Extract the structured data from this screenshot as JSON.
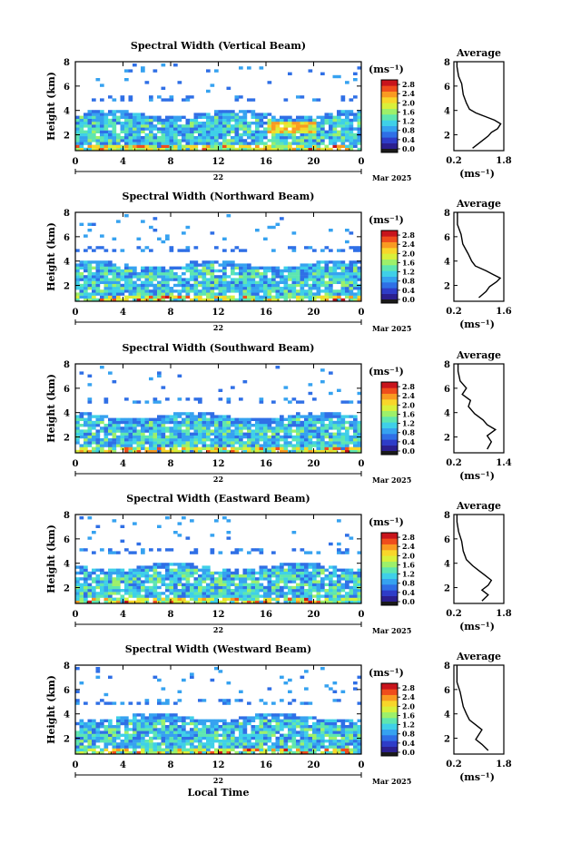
{
  "colorbar": {
    "unit": "(ms⁻¹)",
    "colors": [
      "#1a1a1a",
      "#2b1f8f",
      "#2e3cc8",
      "#2f6fe6",
      "#36a2f0",
      "#3fd0e8",
      "#5ee6b0",
      "#9df06a",
      "#d9f03a",
      "#f8d62a",
      "#f99a22",
      "#ef4d1c",
      "#c8141c"
    ]
  },
  "chart_data": [
    {
      "type": "heatmap",
      "title": "Spectral Width (Vertical Beam)",
      "ylabel": "Height (km)",
      "xlim": [
        0,
        24
      ],
      "ylim": [
        0.7,
        8
      ],
      "xticks": [
        "0",
        "4",
        "8",
        "12",
        "16",
        "20",
        "0"
      ],
      "yticks": [
        "2",
        "4",
        "6",
        "8"
      ],
      "date_day": "22",
      "date_label": "Mar 2025",
      "cbar_ticks": [
        "0.0",
        "0.4",
        "0.8",
        "1.2",
        "1.6",
        "2.0",
        "2.4",
        "2.8"
      ],
      "cbar_range": [
        0.0,
        3.0
      ],
      "avg_title": "Average",
      "avg_xlabel": "(ms⁻¹)",
      "avg_xticks": [
        "0.2",
        "1.8"
      ],
      "avg_xlim": [
        0.2,
        1.8
      ],
      "avg_yticks": [
        "2",
        "4",
        "6",
        "8"
      ],
      "avg_profile": [
        [
          0.8,
          0.9
        ],
        [
          1.0,
          1.3
        ],
        [
          1.2,
          1.7
        ],
        [
          1.3,
          1.9
        ],
        [
          1.4,
          2.2
        ],
        [
          1.6,
          2.5
        ],
        [
          1.7,
          2.9
        ],
        [
          1.5,
          3.2
        ],
        [
          1.2,
          3.5
        ],
        [
          0.9,
          3.8
        ],
        [
          0.7,
          4.1
        ],
        [
          0.6,
          4.6
        ],
        [
          0.5,
          5.3
        ],
        [
          0.45,
          6.2
        ],
        [
          0.35,
          6.8
        ],
        [
          0.3,
          7.6
        ],
        [
          0.3,
          8.0
        ]
      ]
    },
    {
      "type": "heatmap",
      "title": "Spectral Width (Northward Beam)",
      "ylabel": "Height (km)",
      "xlim": [
        0,
        24
      ],
      "ylim": [
        0.7,
        8
      ],
      "xticks": [
        "0",
        "4",
        "8",
        "12",
        "16",
        "20",
        "0"
      ],
      "yticks": [
        "2",
        "4",
        "6",
        "8"
      ],
      "date_day": "22",
      "date_label": "Mar 2025",
      "cbar_ticks": [
        "0.0",
        "0.4",
        "0.8",
        "1.2",
        "1.6",
        "2.0",
        "2.4",
        "2.8"
      ],
      "cbar_range": [
        0.0,
        3.0
      ],
      "avg_title": "Average",
      "avg_xlabel": "(ms⁻¹)",
      "avg_xticks": [
        "0.2",
        "1.6"
      ],
      "avg_xlim": [
        0.2,
        1.6
      ],
      "avg_yticks": [
        "2",
        "4",
        "6",
        "8"
      ],
      "avg_profile": [
        [
          0.9,
          1.0
        ],
        [
          1.1,
          1.5
        ],
        [
          1.2,
          1.9
        ],
        [
          1.4,
          2.3
        ],
        [
          1.5,
          2.6
        ],
        [
          1.3,
          2.9
        ],
        [
          1.1,
          3.2
        ],
        [
          0.8,
          3.6
        ],
        [
          0.7,
          4.0
        ],
        [
          0.6,
          4.6
        ],
        [
          0.45,
          5.4
        ],
        [
          0.4,
          6.2
        ],
        [
          0.3,
          7.0
        ],
        [
          0.3,
          8.0
        ]
      ]
    },
    {
      "type": "heatmap",
      "title": "Spectral Width (Southward Beam)",
      "ylabel": "Height (km)",
      "xlim": [
        0,
        24
      ],
      "ylim": [
        0.7,
        8
      ],
      "xticks": [
        "0",
        "4",
        "8",
        "12",
        "16",
        "20",
        "0"
      ],
      "yticks": [
        "2",
        "4",
        "6",
        "8"
      ],
      "date_day": "22",
      "date_label": "Mar 2025",
      "cbar_ticks": [
        "0.0",
        "0.4",
        "0.8",
        "1.2",
        "1.6",
        "2.0",
        "2.4",
        "2.8"
      ],
      "cbar_range": [
        0.0,
        3.0
      ],
      "avg_title": "Average",
      "avg_xlabel": "(ms⁻¹)",
      "avg_xticks": [
        "0.2",
        "1.4"
      ],
      "avg_xlim": [
        0.2,
        1.4
      ],
      "avg_yticks": [
        "2",
        "4",
        "6",
        "8"
      ],
      "avg_profile": [
        [
          1.0,
          1.0
        ],
        [
          1.1,
          1.6
        ],
        [
          1.0,
          2.1
        ],
        [
          1.2,
          2.6
        ],
        [
          1.0,
          3.0
        ],
        [
          0.9,
          3.4
        ],
        [
          0.7,
          3.9
        ],
        [
          0.55,
          4.5
        ],
        [
          0.6,
          5.0
        ],
        [
          0.4,
          5.5
        ],
        [
          0.5,
          6.0
        ],
        [
          0.35,
          6.6
        ],
        [
          0.3,
          7.4
        ],
        [
          0.3,
          8.0
        ]
      ]
    },
    {
      "type": "heatmap",
      "title": "Spectral Width (Eastward Beam)",
      "ylabel": "Height (km)",
      "xlim": [
        0,
        24
      ],
      "ylim": [
        0.7,
        8
      ],
      "xticks": [
        "0",
        "4",
        "8",
        "12",
        "16",
        "20",
        "0"
      ],
      "yticks": [
        "2",
        "4",
        "6",
        "8"
      ],
      "date_day": "22",
      "date_label": "Mar 2025",
      "cbar_ticks": [
        "0.0",
        "0.4",
        "0.8",
        "1.2",
        "1.6",
        "2.0",
        "2.4",
        "2.8"
      ],
      "cbar_range": [
        0.0,
        3.0
      ],
      "avg_title": "Average",
      "avg_xlabel": "(ms⁻¹)",
      "avg_xticks": [
        "0.2",
        "1.8"
      ],
      "avg_xlim": [
        0.2,
        1.8
      ],
      "avg_yticks": [
        "2",
        "4",
        "6",
        "8"
      ],
      "avg_profile": [
        [
          1.1,
          0.9
        ],
        [
          1.3,
          1.4
        ],
        [
          1.1,
          1.8
        ],
        [
          1.3,
          2.2
        ],
        [
          1.4,
          2.6
        ],
        [
          1.2,
          3.0
        ],
        [
          1.0,
          3.4
        ],
        [
          0.8,
          3.8
        ],
        [
          0.6,
          4.3
        ],
        [
          0.5,
          5.0
        ],
        [
          0.45,
          5.8
        ],
        [
          0.35,
          6.6
        ],
        [
          0.3,
          7.4
        ],
        [
          0.3,
          8.0
        ]
      ]
    },
    {
      "type": "heatmap",
      "title": "Spectral Width (Westward Beam)",
      "ylabel": "Height (km)",
      "xlabel": "Local Time",
      "xlim": [
        0,
        24
      ],
      "ylim": [
        0.7,
        8
      ],
      "xticks": [
        "0",
        "4",
        "8",
        "12",
        "16",
        "20",
        "0"
      ],
      "yticks": [
        "2",
        "4",
        "6",
        "8"
      ],
      "date_day": "22",
      "date_label": "Mar 2025",
      "cbar_ticks": [
        "0.0",
        "0.4",
        "0.8",
        "1.2",
        "1.6",
        "2.0",
        "2.4",
        "2.8"
      ],
      "cbar_range": [
        0.0,
        3.0
      ],
      "avg_title": "Average",
      "avg_xlabel": "(ms⁻¹)",
      "avg_xticks": [
        "0.2",
        "1.8"
      ],
      "avg_xlim": [
        0.2,
        1.8
      ],
      "avg_yticks": [
        "2",
        "4",
        "6",
        "8"
      ],
      "avg_profile": [
        [
          1.3,
          1.0
        ],
        [
          1.1,
          1.5
        ],
        [
          0.9,
          1.9
        ],
        [
          1.0,
          2.3
        ],
        [
          1.1,
          2.7
        ],
        [
          0.9,
          3.1
        ],
        [
          0.7,
          3.5
        ],
        [
          0.6,
          4.0
        ],
        [
          0.5,
          4.6
        ],
        [
          0.45,
          5.2
        ],
        [
          0.4,
          5.8
        ],
        [
          0.3,
          6.6
        ],
        [
          0.3,
          7.4
        ],
        [
          0.3,
          8.0
        ]
      ]
    }
  ]
}
